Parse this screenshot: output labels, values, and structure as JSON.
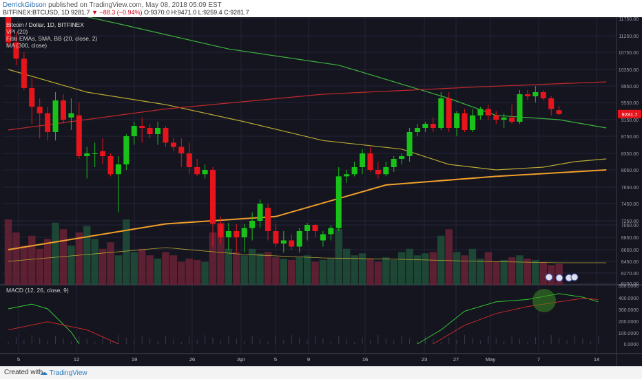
{
  "header": {
    "author": "DerrickGibson",
    "published_text": "published on TradingView.com, May 08, 2018 05:09 EST",
    "symbol": "BITFINEX:BTCUSD, 1D",
    "last": "9281.7",
    "change": "▼ −88.3 (−0.94%)",
    "ohlc": "O:9370.0 H:9471.0 L:9259.4 C:9281.7"
  },
  "footer": {
    "created": "Created with",
    "brand": "TradingView"
  },
  "colors": {
    "background": "#151520",
    "up": "#19c219",
    "down": "#e8141b",
    "ema_green": "#3cb33c",
    "sma_yellow": "#b8a830",
    "bb_red": "#c0282b",
    "ma300_orange": "#f0a02a",
    "macd": "#32c832",
    "signal": "#c82828",
    "price_label_bg": "#e8141b"
  },
  "chart_data": {
    "type": "candlestick",
    "title": "Bitcoin / Dollar, 1D, BITFINEX",
    "legend": [
      {
        "label": "VPI (20)",
        "color": "#19c219"
      },
      {
        "label": "Fibb EMAs, SMA, BB (20, close, 2)",
        "color": "#19c219"
      },
      {
        "label": "MA (300, close)",
        "color": "#19c219"
      }
    ],
    "last_price_label": "9281.7",
    "y_ticks": [
      "11750.00",
      "11250.00",
      "10750.00",
      "10350.00",
      "9950.00",
      "9550.00",
      "9150.00",
      "8750.00",
      "8350.00",
      "8050.00",
      "7650.00",
      "7450.00",
      "7250.00",
      "7050.00",
      "6850.00",
      "6650.00",
      "6450.00",
      "6270.00",
      "6100.00"
    ],
    "x_ticks": [
      "5",
      "12",
      "19",
      "26",
      "Apr",
      "5",
      "9",
      "16",
      "23",
      "27",
      "May",
      "7",
      "14"
    ],
    "candles": [
      {
        "o": 11800,
        "h": 11900,
        "l": 10900,
        "c": 11050
      },
      {
        "o": 11050,
        "h": 11350,
        "l": 10450,
        "c": 10600
      },
      {
        "o": 10600,
        "h": 10750,
        "l": 9850,
        "c": 9900
      },
      {
        "o": 9900,
        "h": 10150,
        "l": 9050,
        "c": 9450
      },
      {
        "o": 9450,
        "h": 9650,
        "l": 8700,
        "c": 9300
      },
      {
        "o": 9300,
        "h": 9450,
        "l": 8650,
        "c": 8850
      },
      {
        "o": 8850,
        "h": 9800,
        "l": 8650,
        "c": 9600
      },
      {
        "o": 9600,
        "h": 9750,
        "l": 9050,
        "c": 9150
      },
      {
        "o": 9200,
        "h": 9650,
        "l": 8900,
        "c": 9300
      },
      {
        "o": 9250,
        "h": 9550,
        "l": 8250,
        "c": 8300
      },
      {
        "o": 8300,
        "h": 8500,
        "l": 7850,
        "c": 8350
      },
      {
        "o": 8350,
        "h": 8600,
        "l": 8100,
        "c": 8350
      },
      {
        "o": 8400,
        "h": 8700,
        "l": 8150,
        "c": 8300
      },
      {
        "o": 8300,
        "h": 8350,
        "l": 7900,
        "c": 7950
      },
      {
        "o": 7950,
        "h": 8300,
        "l": 7350,
        "c": 8150
      },
      {
        "o": 8150,
        "h": 8800,
        "l": 8050,
        "c": 8750
      },
      {
        "o": 8750,
        "h": 9100,
        "l": 8550,
        "c": 9000
      },
      {
        "o": 9000,
        "h": 9200,
        "l": 8600,
        "c": 8950
      },
      {
        "o": 8950,
        "h": 9050,
        "l": 8700,
        "c": 8800
      },
      {
        "o": 8800,
        "h": 9100,
        "l": 8550,
        "c": 8950
      },
      {
        "o": 8950,
        "h": 9000,
        "l": 8500,
        "c": 8600
      },
      {
        "o": 8600,
        "h": 8700,
        "l": 8400,
        "c": 8500
      },
      {
        "o": 8500,
        "h": 8700,
        "l": 8100,
        "c": 8350
      },
      {
        "o": 8350,
        "h": 8600,
        "l": 7950,
        "c": 8100
      },
      {
        "o": 8100,
        "h": 8250,
        "l": 7900,
        "c": 7950
      },
      {
        "o": 7950,
        "h": 8150,
        "l": 7850,
        "c": 8050
      },
      {
        "o": 8050,
        "h": 8100,
        "l": 6700,
        "c": 7100
      },
      {
        "o": 7100,
        "h": 7300,
        "l": 6750,
        "c": 6850
      },
      {
        "o": 6850,
        "h": 7150,
        "l": 6650,
        "c": 6950
      },
      {
        "o": 6950,
        "h": 7100,
        "l": 6600,
        "c": 6850
      },
      {
        "o": 6850,
        "h": 7100,
        "l": 6600,
        "c": 7000
      },
      {
        "o": 7000,
        "h": 7350,
        "l": 6800,
        "c": 7250
      },
      {
        "o": 7250,
        "h": 7500,
        "l": 7000,
        "c": 7450
      },
      {
        "o": 7400,
        "h": 7450,
        "l": 6800,
        "c": 6950
      },
      {
        "o": 6950,
        "h": 7100,
        "l": 6700,
        "c": 6750
      },
      {
        "o": 6750,
        "h": 6950,
        "l": 6600,
        "c": 6800
      },
      {
        "o": 6800,
        "h": 6900,
        "l": 6650,
        "c": 6700
      },
      {
        "o": 6700,
        "h": 7000,
        "l": 6600,
        "c": 6950
      },
      {
        "o": 6950,
        "h": 7150,
        "l": 6800,
        "c": 7050
      },
      {
        "o": 7050,
        "h": 7100,
        "l": 6850,
        "c": 6950
      },
      {
        "o": 6800,
        "h": 6950,
        "l": 6700,
        "c": 6900
      },
      {
        "o": 6900,
        "h": 7050,
        "l": 6800,
        "c": 7000
      },
      {
        "o": 7000,
        "h": 8100,
        "l": 6950,
        "c": 7900
      },
      {
        "o": 7900,
        "h": 8050,
        "l": 7750,
        "c": 7950
      },
      {
        "o": 7950,
        "h": 8200,
        "l": 7900,
        "c": 8100
      },
      {
        "o": 8100,
        "h": 8450,
        "l": 7950,
        "c": 8350
      },
      {
        "o": 8350,
        "h": 8500,
        "l": 8000,
        "c": 8050
      },
      {
        "o": 8050,
        "h": 8200,
        "l": 7850,
        "c": 7950
      },
      {
        "o": 7950,
        "h": 8200,
        "l": 7900,
        "c": 8100
      },
      {
        "o": 8100,
        "h": 8300,
        "l": 8000,
        "c": 8250
      },
      {
        "o": 8250,
        "h": 8350,
        "l": 8150,
        "c": 8300
      },
      {
        "o": 8300,
        "h": 8950,
        "l": 8200,
        "c": 8850
      },
      {
        "o": 8850,
        "h": 9050,
        "l": 8750,
        "c": 8950
      },
      {
        "o": 8950,
        "h": 9100,
        "l": 8850,
        "c": 9050
      },
      {
        "o": 9050,
        "h": 9200,
        "l": 8850,
        "c": 8950
      },
      {
        "o": 8950,
        "h": 9800,
        "l": 8900,
        "c": 9650
      },
      {
        "o": 9650,
        "h": 9800,
        "l": 8850,
        "c": 8950
      },
      {
        "o": 8950,
        "h": 9350,
        "l": 8750,
        "c": 9300
      },
      {
        "o": 9300,
        "h": 9400,
        "l": 8850,
        "c": 8900
      },
      {
        "o": 8900,
        "h": 9400,
        "l": 8850,
        "c": 9250
      },
      {
        "o": 9250,
        "h": 9450,
        "l": 9150,
        "c": 9400
      },
      {
        "o": 9400,
        "h": 9500,
        "l": 9150,
        "c": 9250
      },
      {
        "o": 9250,
        "h": 9350,
        "l": 9050,
        "c": 9150
      },
      {
        "o": 9150,
        "h": 9300,
        "l": 8950,
        "c": 9200
      },
      {
        "o": 9200,
        "h": 9500,
        "l": 9050,
        "c": 9100
      },
      {
        "o": 9100,
        "h": 9850,
        "l": 9050,
        "c": 9750
      },
      {
        "o": 9750,
        "h": 9850,
        "l": 9600,
        "c": 9700
      },
      {
        "o": 9700,
        "h": 9950,
        "l": 9550,
        "c": 9800
      },
      {
        "o": 9800,
        "h": 9850,
        "l": 9600,
        "c": 9650
      },
      {
        "o": 9650,
        "h": 9700,
        "l": 9250,
        "c": 9400
      },
      {
        "o": 9370,
        "h": 9471,
        "l": 9259.4,
        "c": 9281.7
      }
    ],
    "volume": [
      1.0,
      0.8,
      0.6,
      0.75,
      0.55,
      0.7,
      0.95,
      0.85,
      0.6,
      0.8,
      0.9,
      0.7,
      0.55,
      0.65,
      0.45,
      1.0,
      0.5,
      0.55,
      0.45,
      0.4,
      0.5,
      0.45,
      0.35,
      0.4,
      0.38,
      0.35,
      0.8,
      0.95,
      0.55,
      0.5,
      0.45,
      0.55,
      0.48,
      0.5,
      0.42,
      0.4,
      0.38,
      0.42,
      0.45,
      0.35,
      0.38,
      0.4,
      0.85,
      0.55,
      0.45,
      0.48,
      0.4,
      0.35,
      0.42,
      0.38,
      0.5,
      0.55,
      0.45,
      0.48,
      0.5,
      0.75,
      0.85,
      0.5,
      0.45,
      0.55,
      0.4,
      0.5,
      0.35,
      0.38,
      0.42,
      0.45,
      0.4,
      0.38,
      0.35,
      0.3,
      0.32
    ],
    "ema_green": [
      [
        0,
        12300
      ],
      [
        14,
        11600
      ],
      [
        28,
        10850
      ],
      [
        42,
        10450
      ],
      [
        56,
        9650
      ],
      [
        62,
        9250
      ],
      [
        70,
        9150
      ],
      [
        76,
        8950
      ]
    ],
    "sma_yellow": [
      [
        0,
        10350
      ],
      [
        10,
        9800
      ],
      [
        20,
        9500
      ],
      [
        30,
        9100
      ],
      [
        40,
        8650
      ],
      [
        50,
        8450
      ],
      [
        56,
        8150
      ],
      [
        62,
        8050
      ],
      [
        68,
        8100
      ],
      [
        72,
        8200
      ],
      [
        76,
        8250
      ]
    ],
    "bb_upper": [
      [
        0,
        8900
      ],
      [
        20,
        9400
      ],
      [
        40,
        9750
      ],
      [
        60,
        9930
      ],
      [
        76,
        10050
      ]
    ],
    "ma300": [
      [
        0,
        6650
      ],
      [
        20,
        7100
      ],
      [
        34,
        7300
      ],
      [
        48,
        7700
      ],
      [
        62,
        7900
      ],
      [
        76,
        8050
      ]
    ],
    "macd_ticks": [
      "500.0000",
      "400.0000",
      "300.0000",
      "200.0000",
      "100.0000",
      "0.0000"
    ],
    "macd_label": "MACD (12, 26, close, 9)",
    "macd_line": [
      [
        0,
        300
      ],
      [
        3,
        340
      ],
      [
        5,
        300
      ],
      [
        8,
        100
      ],
      [
        9,
        0
      ]
    ],
    "signal_line": [
      [
        0,
        120
      ],
      [
        5,
        190
      ],
      [
        10,
        120
      ],
      [
        14,
        0
      ]
    ],
    "macd_line2": [
      [
        52,
        0
      ],
      [
        55,
        120
      ],
      [
        58,
        280
      ],
      [
        62,
        360
      ],
      [
        66,
        380
      ],
      [
        70,
        430
      ],
      [
        73,
        400
      ],
      [
        75,
        360
      ]
    ],
    "signal_line2": [
      [
        54,
        0
      ],
      [
        58,
        160
      ],
      [
        62,
        260
      ],
      [
        66,
        320
      ],
      [
        70,
        360
      ],
      [
        73,
        390
      ],
      [
        75,
        380
      ]
    ]
  }
}
